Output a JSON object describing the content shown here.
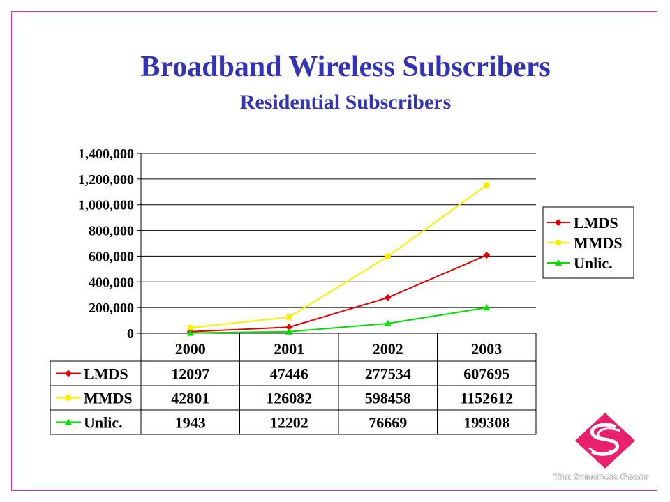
{
  "slide": {
    "title": "Broadband Wireless Subscribers",
    "subtitle": "Residential Subscribers",
    "brand": "The Strategis Group"
  },
  "colors": {
    "border": "#e0309a",
    "title": "#3333b5",
    "logo": "#e8206e"
  },
  "chart_data": {
    "type": "line",
    "categories": [
      "2000",
      "2001",
      "2002",
      "2003"
    ],
    "series": [
      {
        "name": "LMDS",
        "values": [
          12097,
          47446,
          277534,
          607695
        ],
        "color": "#e00000",
        "marker": "diamond"
      },
      {
        "name": "MMDS",
        "values": [
          42801,
          126082,
          598458,
          1152612
        ],
        "color": "#ffee00",
        "marker": "square"
      },
      {
        "name": "Unlic.",
        "values": [
          1943,
          12202,
          76669,
          199308
        ],
        "color": "#00dd00",
        "marker": "triangle"
      }
    ],
    "yticks": [
      "0",
      "200,000",
      "400,000",
      "600,000",
      "800,000",
      "1,000,000",
      "1,200,000",
      "1,400,000"
    ],
    "ylim": [
      0,
      1400000
    ],
    "grid": true,
    "legend": "right",
    "data_table": true
  }
}
